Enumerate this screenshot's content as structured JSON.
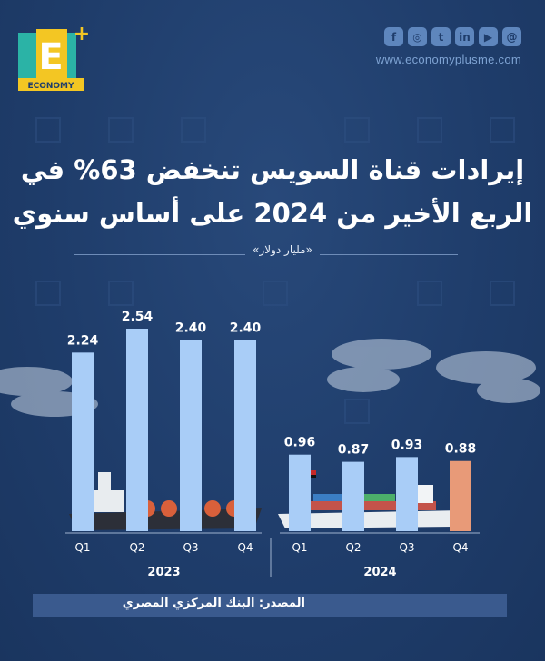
{
  "brand": {
    "logo_letter": "E",
    "logo_plus": "+",
    "logo_word": "ECONOMY",
    "website": "www.economyplusme.com",
    "social_icons": [
      "facebook-icon",
      "instagram-icon",
      "twitter-icon",
      "linkedin-icon",
      "youtube-icon",
      "threads-icon"
    ]
  },
  "title_line1": "إيرادات قناة السويس تنخفض 63% في",
  "title_line2": "الربع الأخير من 2024 على أساس سنوي",
  "unit": "«مليار دولار»",
  "source": "المصدر: البنك المركزي المصري",
  "colors": {
    "background": "#1f3d6b",
    "bar": "#a9cdf7",
    "highlight_bar": "#e89a78",
    "text": "#ffffff"
  },
  "chart_data": {
    "type": "bar",
    "groups": [
      {
        "year": "2023",
        "categories": [
          "Q1",
          "Q2",
          "Q3",
          "Q4"
        ],
        "values": [
          2.24,
          2.54,
          2.4,
          2.4
        ],
        "labels": [
          "2.24",
          "2.54",
          "2.40",
          "2.40"
        ]
      },
      {
        "year": "2024",
        "categories": [
          "Q1",
          "Q2",
          "Q3",
          "Q4"
        ],
        "values": [
          0.96,
          0.87,
          0.93,
          0.88
        ],
        "labels": [
          "0.96",
          "0.87",
          "0.93",
          "0.88"
        ],
        "highlight_index": 3
      }
    ],
    "ylim": [
      0,
      2.54
    ],
    "grid": false,
    "legend": "none"
  }
}
